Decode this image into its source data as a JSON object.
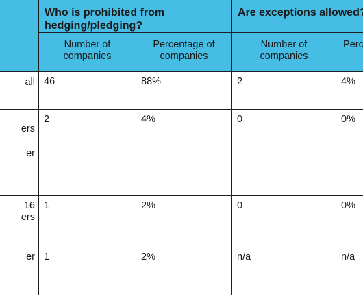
{
  "header": {
    "group1": "Who is prohibited from hedging/pledging?",
    "group2": "Are exceptions allowed?",
    "col_number": "Number of companies",
    "col_percentage": "Percentage of companies",
    "col_number2": "Number of companies",
    "col_percentage_clipped": "Perce"
  },
  "rows": [
    {
      "label_fragments": [
        "all"
      ],
      "cells": [
        "46",
        "88%",
        "2",
        "4%"
      ]
    },
    {
      "label_fragments": [
        "ers",
        "er"
      ],
      "cells": [
        "2",
        "4%",
        "0",
        "0%"
      ]
    },
    {
      "label_fragments": [
        "16",
        "ers"
      ],
      "cells": [
        "1",
        "2%",
        "0",
        "0%"
      ]
    },
    {
      "label_fragments": [
        "er"
      ],
      "cells": [
        "1",
        "2%",
        "n/a",
        "n/a"
      ]
    }
  ]
}
